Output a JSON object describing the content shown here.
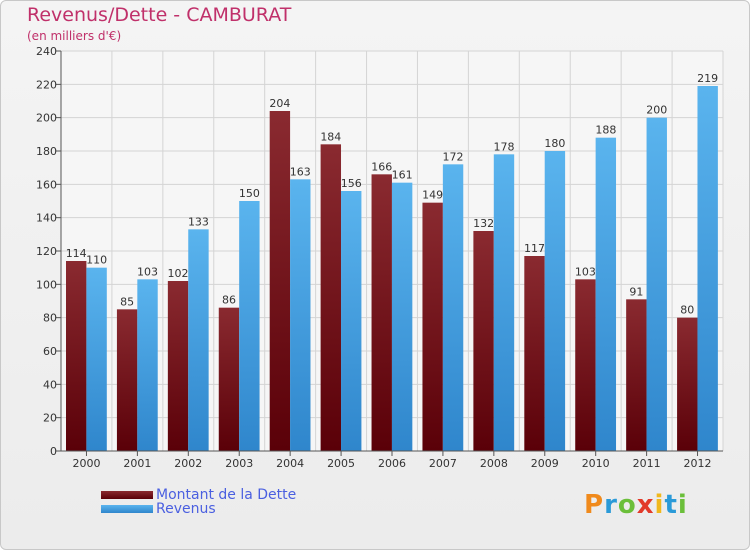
{
  "title": "Revenus/Dette - CAMBURAT",
  "subtitle": "(en milliers d'€)",
  "legend": [
    {
      "label": "Montant de la Dette",
      "color": "#6b0d15"
    },
    {
      "label": "Revenus",
      "color": "#4aa3e4"
    }
  ],
  "logo": {
    "text": "Proxiti",
    "letters": [
      "P",
      "r",
      "o",
      "x",
      "i",
      "t",
      "i"
    ],
    "colors": [
      "#f08a1c",
      "#2a9ad8",
      "#6bbf3a",
      "#e23a2a",
      "#f0b81c",
      "#2a9ad8",
      "#6bbf3a"
    ]
  },
  "colors": {
    "debt_top": "#8a2a30",
    "debt_bottom": "#5a0008",
    "rev_top": "#5ab4ee",
    "rev_bottom": "#2f86cc",
    "title": "#c0306a"
  },
  "chart_data": {
    "type": "bar",
    "title": "Revenus/Dette - CAMBURAT",
    "subtitle": "(en milliers d'€)",
    "categories": [
      "2000",
      "2001",
      "2002",
      "2003",
      "2004",
      "2005",
      "2006",
      "2007",
      "2008",
      "2009",
      "2010",
      "2011",
      "2012"
    ],
    "series": [
      {
        "name": "Montant de la Dette",
        "values": [
          114,
          85,
          102,
          86,
          204,
          184,
          166,
          149,
          132,
          117,
          103,
          91,
          80
        ]
      },
      {
        "name": "Revenus",
        "values": [
          110,
          103,
          133,
          150,
          163,
          156,
          161,
          172,
          178,
          180,
          188,
          200,
          219
        ]
      }
    ],
    "ylim": [
      0,
      240
    ],
    "yticks": [
      0,
      20,
      40,
      60,
      80,
      100,
      120,
      140,
      160,
      180,
      200,
      220,
      240
    ],
    "grid": true,
    "legend_position": "bottom-left"
  }
}
